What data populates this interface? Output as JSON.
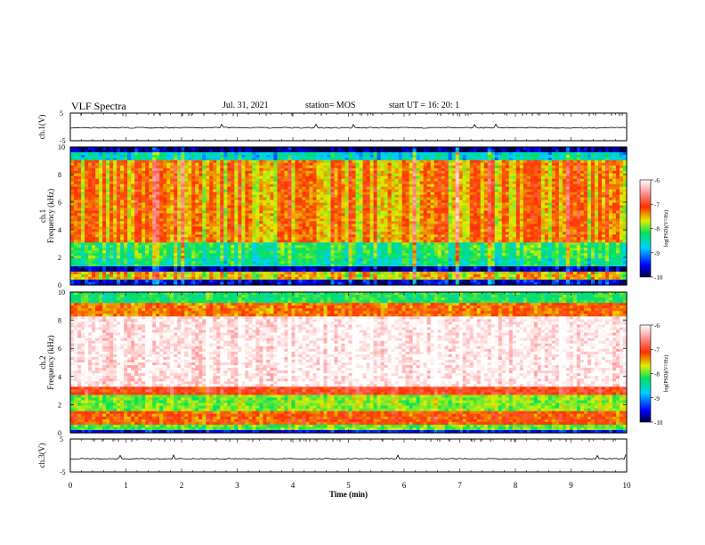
{
  "header": {
    "title": "VLF Spectra",
    "date": "Jul. 31, 2021",
    "station": "station= MOS",
    "start": "start UT =  16: 20: 1"
  },
  "chart_data": [
    {
      "type": "line",
      "ylabel": "ch.1(V)",
      "ylim": [
        -5,
        5
      ],
      "yticks": [
        "5",
        "-5"
      ],
      "xlim": [
        0,
        10
      ],
      "baseline": -0.3
    },
    {
      "type": "heatmap",
      "ylabel": "ch.1 Frequency (kHz)",
      "ylim": [
        0,
        10
      ],
      "yticks": [
        "0",
        "2",
        "4",
        "6",
        "8",
        "10"
      ],
      "xlim": [
        0,
        10
      ],
      "colorbar": {
        "label": "log(PSD)(V²/Hz)",
        "range": [
          -10,
          -6
        ],
        "ticks": [
          "-6",
          "-7",
          "-8",
          "-9",
          "-10"
        ]
      },
      "bands": [
        {
          "from": 9.6,
          "to": 10,
          "level": -9.9
        },
        {
          "from": 9.0,
          "to": 9.6,
          "level": -8.6
        },
        {
          "from": 3.0,
          "to": 9.0,
          "level": -7.4
        },
        {
          "from": 2.0,
          "to": 3.0,
          "level": -8.2
        },
        {
          "from": 1.4,
          "to": 2.0,
          "level": -8.4
        },
        {
          "from": 1.0,
          "to": 1.4,
          "level": -9.8
        },
        {
          "from": 0.3,
          "to": 1.0,
          "level": -7.6
        },
        {
          "from": 0.0,
          "to": 0.3,
          "level": -9.6
        }
      ]
    },
    {
      "type": "heatmap",
      "ylabel": "ch.2 Frequency (kHz)",
      "ylim": [
        0,
        10
      ],
      "yticks": [
        "0",
        "2",
        "4",
        "6",
        "8",
        "10"
      ],
      "xlim": [
        0,
        10
      ],
      "colorbar": {
        "label": "log(PSD)(V²/Hz)",
        "range": [
          -10,
          -6
        ],
        "ticks": [
          "-6",
          "-7",
          "-8",
          "-9",
          "-10"
        ]
      },
      "bands": [
        {
          "from": 9.2,
          "to": 10,
          "level": -8.2
        },
        {
          "from": 8.2,
          "to": 9.2,
          "level": -7.3
        },
        {
          "from": 3.2,
          "to": 8.2,
          "level": -6.1
        },
        {
          "from": 2.6,
          "to": 3.2,
          "level": -7.0
        },
        {
          "from": 1.6,
          "to": 2.6,
          "level": -7.9
        },
        {
          "from": 0.5,
          "to": 1.6,
          "level": -7.2
        },
        {
          "from": 0.15,
          "to": 0.5,
          "level": -8.0
        },
        {
          "from": 0.0,
          "to": 0.15,
          "level": -9.5
        }
      ]
    },
    {
      "type": "line",
      "ylabel": "ch.3(V)",
      "ylim": [
        -5,
        5
      ],
      "yticks": [
        "5",
        "-5"
      ],
      "xlim": [
        0,
        10
      ],
      "baseline": -1.0
    }
  ],
  "xaxis": {
    "label": "Time  (min)",
    "ticks": [
      "0",
      "1",
      "2",
      "3",
      "4",
      "5",
      "6",
      "7",
      "8",
      "9",
      "10"
    ]
  }
}
